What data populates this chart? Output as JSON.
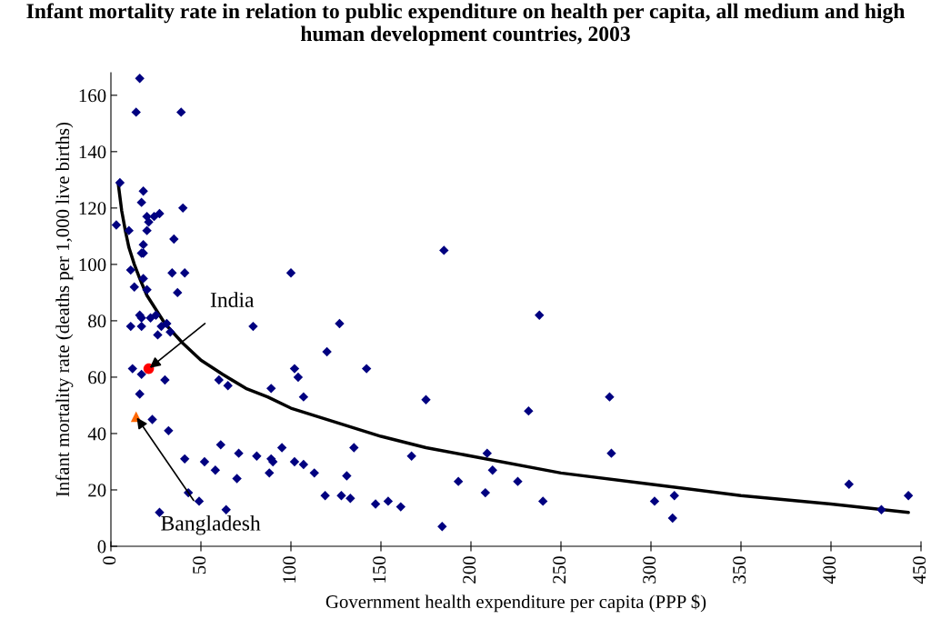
{
  "chart_data": {
    "type": "scatter",
    "title": "Infant mortality rate in relation to public expenditure on health per capita, all medium and high human development countries, 2003",
    "xlabel": "Government health expenditure per capita (PPP $)",
    "ylabel": "Infant mortality rate (deaths per 1,000 live births)",
    "xlim": [
      0,
      450
    ],
    "xticks": [
      0,
      50,
      100,
      150,
      200,
      250,
      300,
      350,
      400,
      450
    ],
    "ylim": [
      0,
      168
    ],
    "yticks": [
      0,
      20,
      40,
      60,
      80,
      100,
      120,
      140,
      160
    ],
    "grid": false,
    "series": [
      {
        "type": "scatter",
        "marker": "diamond",
        "color": "#000080",
        "x": [
          16,
          14,
          39,
          5,
          18,
          17,
          40,
          20,
          21,
          24,
          27,
          3,
          10,
          20,
          35,
          18,
          17,
          18,
          11,
          18,
          34,
          41,
          13,
          20,
          37,
          11,
          16,
          17,
          22,
          25,
          17,
          28,
          31,
          26,
          33,
          12,
          17,
          30,
          16,
          23,
          32,
          41,
          52,
          43,
          49,
          27,
          100,
          185,
          79,
          127,
          120,
          102,
          104,
          142,
          89,
          107,
          175,
          60,
          65,
          61,
          58,
          71,
          70,
          81,
          89,
          90,
          88,
          95,
          102,
          107,
          113,
          131,
          135,
          167,
          119,
          128,
          133,
          147,
          154,
          161,
          184,
          64,
          193,
          238,
          232,
          277,
          209,
          212,
          208,
          240,
          278,
          226,
          302,
          313,
          312,
          410,
          428,
          443
        ],
        "values": [
          166,
          154,
          154,
          129,
          126,
          122,
          120,
          117,
          115,
          117,
          118,
          114,
          112,
          112,
          109,
          107,
          104,
          104,
          98,
          95,
          97,
          97,
          92,
          91,
          90,
          78,
          82,
          81,
          81,
          82,
          78,
          78,
          79,
          75,
          76,
          63,
          61,
          59,
          54,
          45,
          41,
          31,
          30,
          19,
          16,
          12,
          97,
          105,
          78,
          79,
          69,
          63,
          60,
          63,
          56,
          53,
          52,
          59,
          57,
          36,
          27,
          33,
          24,
          32,
          31,
          30,
          26,
          35,
          30,
          29,
          26,
          25,
          35,
          32,
          18,
          18,
          17,
          15,
          16,
          14,
          7,
          13,
          23,
          82,
          48,
          53,
          33,
          27,
          19,
          16,
          33,
          23,
          16,
          18,
          10,
          22,
          13,
          18
        ]
      },
      {
        "type": "scatter",
        "marker": "circle",
        "color": "#ff0000",
        "x": [
          21
        ],
        "values": [
          63
        ]
      },
      {
        "type": "scatter",
        "marker": "triangle",
        "color": "#ff6600",
        "x": [
          14
        ],
        "values": [
          46
        ]
      },
      {
        "type": "line",
        "marker": "none",
        "color": "#000000",
        "line_style": "solid",
        "x": [
          4,
          6,
          8,
          10,
          13,
          16,
          20,
          25,
          30,
          40,
          50,
          62,
          75,
          87,
          100,
          125,
          150,
          175,
          200,
          250,
          300,
          350,
          400,
          443
        ],
        "values": [
          129,
          119,
          112,
          106,
          100,
          95,
          89,
          84,
          79,
          72,
          66,
          61,
          56,
          53,
          49,
          44,
          39,
          35,
          32,
          26,
          22,
          18,
          15,
          12
        ]
      }
    ],
    "annotations": [
      {
        "text": "India",
        "x": 21,
        "y": 63
      },
      {
        "text": "Bangladesh",
        "x": 14,
        "y": 46
      }
    ]
  }
}
